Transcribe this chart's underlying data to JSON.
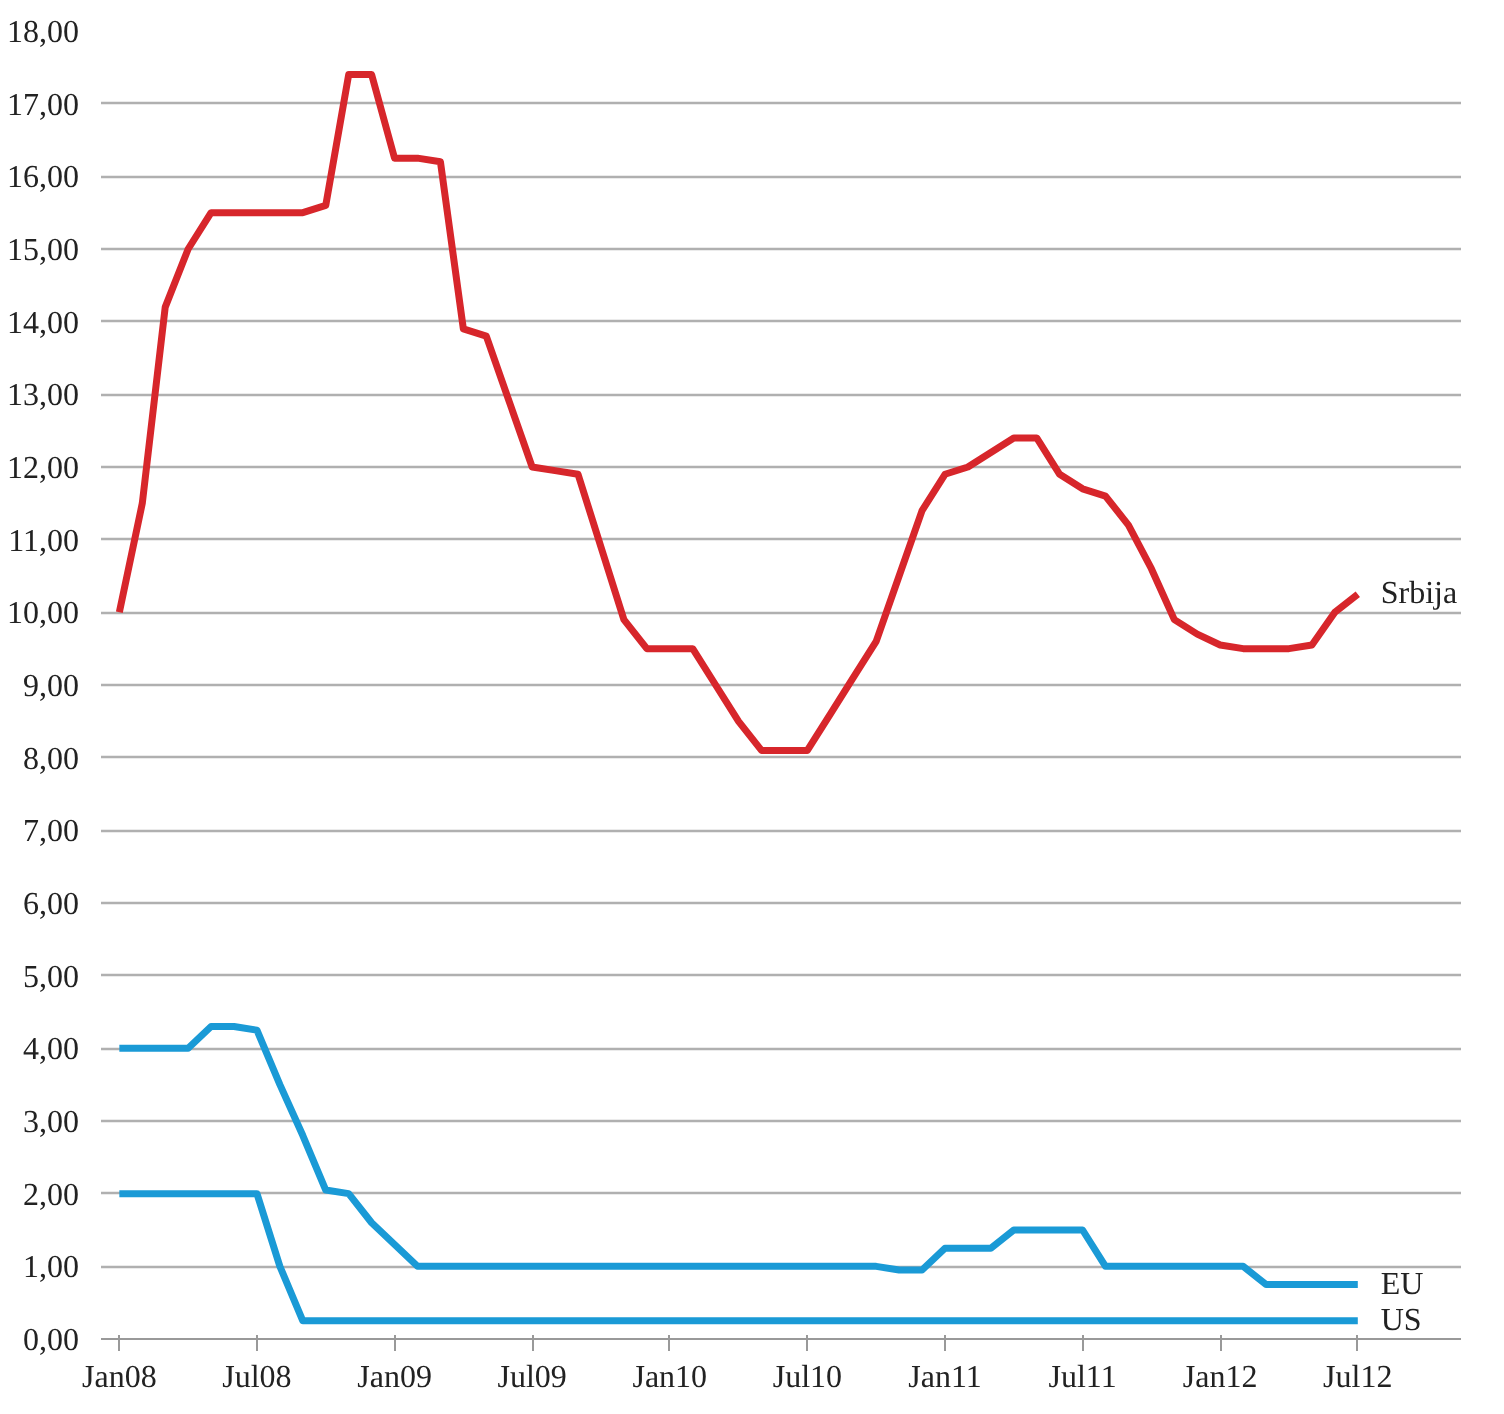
{
  "chart_data": {
    "type": "line",
    "categories": [
      "Jan08",
      null,
      null,
      null,
      null,
      null,
      "Jul08",
      null,
      null,
      null,
      null,
      null,
      "Jan09",
      null,
      null,
      null,
      null,
      null,
      "Jul09",
      null,
      null,
      null,
      null,
      null,
      "Jan10",
      null,
      null,
      null,
      null,
      null,
      "Jul10",
      null,
      null,
      null,
      null,
      null,
      "Jan11",
      null,
      null,
      null,
      null,
      null,
      "Jul11",
      null,
      null,
      null,
      null,
      null,
      "Jan12",
      null,
      null,
      null,
      null,
      null,
      "Jul12"
    ],
    "series": [
      {
        "name": "Srbija",
        "color": "#d7262b",
        "values": [
          10.0,
          11.5,
          14.2,
          15.0,
          15.5,
          15.5,
          15.5,
          15.5,
          15.5,
          15.6,
          17.4,
          17.4,
          16.25,
          16.25,
          16.2,
          13.9,
          13.8,
          12.9,
          12.0,
          11.95,
          11.9,
          10.9,
          9.9,
          9.5,
          9.5,
          9.5,
          9.0,
          8.5,
          8.1,
          8.1,
          8.1,
          8.6,
          9.1,
          9.6,
          10.5,
          11.4,
          11.9,
          12.0,
          12.2,
          12.4,
          12.4,
          11.9,
          11.7,
          11.6,
          11.2,
          10.6,
          9.9,
          9.7,
          9.55,
          9.5,
          9.5,
          9.5,
          9.55,
          10.0,
          10.25
        ]
      },
      {
        "name": "EU",
        "color": "#1a9ad6",
        "values": [
          4.0,
          4.0,
          4.0,
          4.0,
          4.3,
          4.3,
          4.25,
          3.5,
          2.8,
          2.05,
          2.0,
          1.6,
          1.3,
          1.0,
          1.0,
          1.0,
          1.0,
          1.0,
          1.0,
          1.0,
          1.0,
          1.0,
          1.0,
          1.0,
          1.0,
          1.0,
          1.0,
          1.0,
          1.0,
          1.0,
          1.0,
          1.0,
          1.0,
          1.0,
          0.95,
          0.95,
          1.25,
          1.25,
          1.25,
          1.5,
          1.5,
          1.5,
          1.5,
          1.0,
          1.0,
          1.0,
          1.0,
          1.0,
          1.0,
          1.0,
          0.75,
          0.75,
          0.75,
          0.75,
          0.75
        ]
      },
      {
        "name": "US",
        "color": "#1a9ad6",
        "values": [
          2.0,
          2.0,
          2.0,
          2.0,
          2.0,
          2.0,
          2.0,
          1.0,
          0.25,
          0.25,
          0.25,
          0.25,
          0.25,
          0.25,
          0.25,
          0.25,
          0.25,
          0.25,
          0.25,
          0.25,
          0.25,
          0.25,
          0.25,
          0.25,
          0.25,
          0.25,
          0.25,
          0.25,
          0.25,
          0.25,
          0.25,
          0.25,
          0.25,
          0.25,
          0.25,
          0.25,
          0.25,
          0.25,
          0.25,
          0.25,
          0.25,
          0.25,
          0.25,
          0.25,
          0.25,
          0.25,
          0.25,
          0.25,
          0.25,
          0.25,
          0.25,
          0.25,
          0.25,
          0.25,
          0.25
        ]
      }
    ],
    "ylim": [
      0,
      18
    ],
    "yticks": [
      {
        "value": 0,
        "label": "0,00"
      },
      {
        "value": 1,
        "label": "1,00"
      },
      {
        "value": 2,
        "label": "2,00"
      },
      {
        "value": 3,
        "label": "3,00"
      },
      {
        "value": 4,
        "label": "4,00"
      },
      {
        "value": 5,
        "label": "5,00"
      },
      {
        "value": 6,
        "label": "6,00"
      },
      {
        "value": 7,
        "label": "7,00"
      },
      {
        "value": 8,
        "label": "8,00"
      },
      {
        "value": 9,
        "label": "9,00"
      },
      {
        "value": 10,
        "label": "10,00"
      },
      {
        "value": 11,
        "label": "11,00"
      },
      {
        "value": 12,
        "label": "12,00"
      },
      {
        "value": 13,
        "label": "13,00"
      },
      {
        "value": 14,
        "label": "14,00"
      },
      {
        "value": 15,
        "label": "15,00"
      },
      {
        "value": 16,
        "label": "16,00"
      },
      {
        "value": 17,
        "label": "17,00"
      },
      {
        "value": 18,
        "label": "18,00"
      }
    ],
    "grid": "y",
    "marker": "none",
    "line_style": "solid"
  }
}
